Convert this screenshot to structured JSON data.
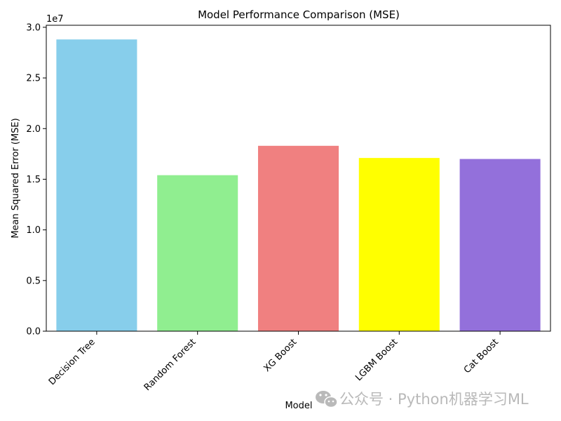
{
  "chart_data": {
    "type": "bar",
    "title": "Model Performance Comparison (MSE)",
    "xlabel": "Model",
    "ylabel": "Mean Squared Error (MSE)",
    "y_offset_label": "1e7",
    "categories": [
      "Decision Tree",
      "Random Forest",
      "XG Boost",
      "LGBM Boost",
      "Cat Boost"
    ],
    "values": [
      28800000,
      15400000,
      18300000,
      17100000,
      17000000
    ],
    "colors": [
      "#87ceeb",
      "#90ee90",
      "#f08080",
      "#ffff00",
      "#9370db"
    ],
    "ylim": [
      0,
      30200000
    ],
    "yticks": [
      0,
      5000000,
      10000000,
      15000000,
      20000000,
      25000000,
      30000000
    ],
    "ytick_labels": [
      "0.0",
      "0.5",
      "1.0",
      "1.5",
      "2.0",
      "2.5",
      "3.0"
    ],
    "grid": false,
    "legend": "none"
  },
  "watermark": {
    "text": "公众号 · Python机器学习ML",
    "icon": "wechat-icon"
  }
}
